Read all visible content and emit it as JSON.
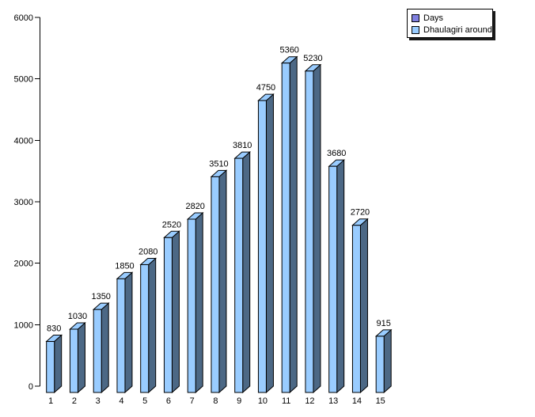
{
  "chart_data": {
    "type": "bar",
    "style": "3d-extruded",
    "title": "",
    "xlabel": "",
    "ylabel": "",
    "categories": [
      "1",
      "2",
      "3",
      "4",
      "5",
      "6",
      "7",
      "8",
      "9",
      "10",
      "11",
      "12",
      "13",
      "14",
      "15"
    ],
    "series": [
      {
        "name": "Dhaulagiri around",
        "values": [
          830,
          1030,
          1350,
          1850,
          2080,
          2520,
          2820,
          3510,
          3810,
          4750,
          5360,
          5230,
          3680,
          2720,
          915
        ],
        "color_front": "#99CCFF",
        "color_side": "#4C6885",
        "color_top": "#99CCFF",
        "color_outline": "#000000"
      }
    ],
    "value_labels": [
      "830",
      "1030",
      "1350",
      "1850",
      "2080",
      "2520",
      "2820",
      "3510",
      "3810",
      "4750",
      "5360",
      "5230",
      "3680",
      "2720",
      "915"
    ],
    "ylim": [
      0,
      6000
    ],
    "y_ticks": [
      "0",
      "1000",
      "2000",
      "3000",
      "4000",
      "5000",
      "6000"
    ],
    "y_tick_step": 1000,
    "grid": "off",
    "legend": {
      "position": "top-right",
      "entries": [
        {
          "label": "Days",
          "color": "#8080E0"
        },
        {
          "label": "Dhaulagiri around",
          "color": "#99CCFF"
        }
      ]
    }
  }
}
